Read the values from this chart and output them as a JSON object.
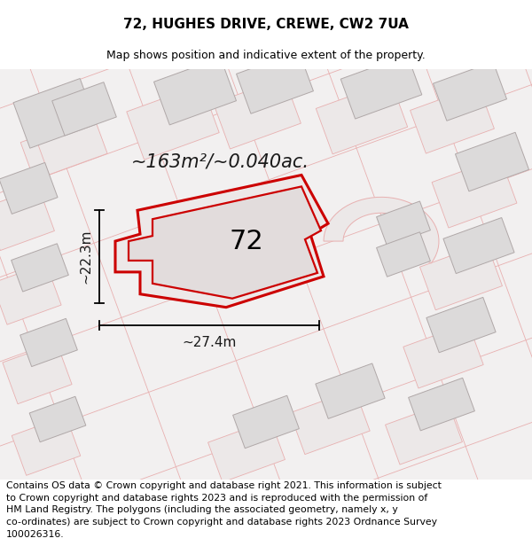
{
  "title": "72, HUGHES DRIVE, CREWE, CW2 7UA",
  "subtitle": "Map shows position and indicative extent of the property.",
  "footer": "Contains OS data © Crown copyright and database right 2021. This information is subject to Crown copyright and database rights 2023 and is reproduced with the permission of HM Land Registry. The polygons (including the associated geometry, namely x, y co-ordinates) are subject to Crown copyright and database rights 2023 Ordnance Survey 100026316.",
  "area_label": "~163m²/~0.040ac.",
  "width_label": "~27.4m",
  "height_label": "~22.3m",
  "property_number": "72",
  "bg_color": "#f2f0f0",
  "highlight_color": "#cc0000",
  "plot_outline_color": "#e8b0b0",
  "building_fill": "#dcdada",
  "building_edge": "#b0a8a8",
  "title_fontsize": 11,
  "subtitle_fontsize": 9,
  "footer_fontsize": 7.8,
  "ROT": 20
}
